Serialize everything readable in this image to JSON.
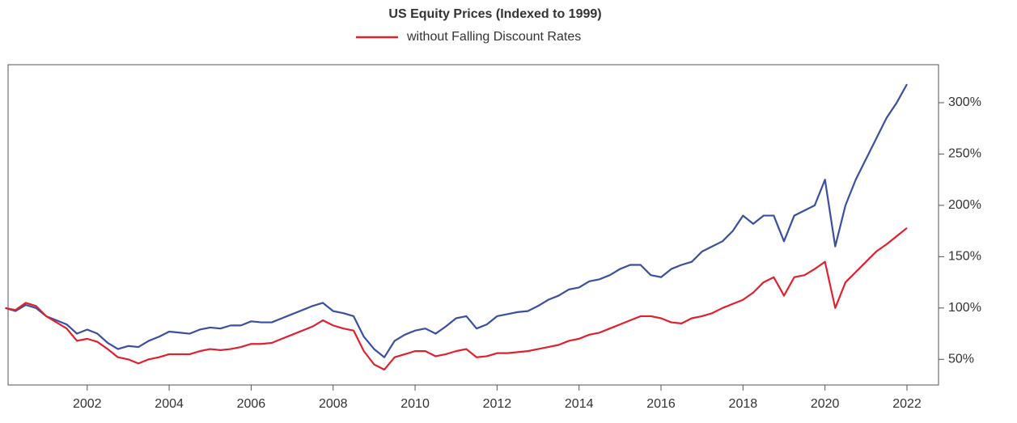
{
  "chart_data": {
    "type": "line",
    "title": "US Equity Prices (Indexed to 1999)",
    "x": [
      2000,
      2000.25,
      2000.5,
      2000.75,
      2001,
      2001.25,
      2001.5,
      2001.75,
      2002,
      2002.25,
      2002.5,
      2002.75,
      2003,
      2003.25,
      2003.5,
      2003.75,
      2004,
      2004.25,
      2004.5,
      2004.75,
      2005,
      2005.25,
      2005.5,
      2005.75,
      2006,
      2006.25,
      2006.5,
      2006.75,
      2007,
      2007.25,
      2007.5,
      2007.75,
      2008,
      2008.25,
      2008.5,
      2008.75,
      2009,
      2009.25,
      2009.5,
      2009.75,
      2010,
      2010.25,
      2010.5,
      2010.75,
      2011,
      2011.25,
      2011.5,
      2011.75,
      2012,
      2012.25,
      2012.5,
      2012.75,
      2013,
      2013.25,
      2013.5,
      2013.75,
      2014,
      2014.25,
      2014.5,
      2014.75,
      2015,
      2015.25,
      2015.5,
      2015.75,
      2016,
      2016.25,
      2016.5,
      2016.75,
      2017,
      2017.25,
      2017.5,
      2017.75,
      2018,
      2018.25,
      2018.5,
      2018.75,
      2019,
      2019.25,
      2019.5,
      2019.75,
      2020,
      2020.25,
      2020.5,
      2020.75,
      2021,
      2021.25,
      2021.5,
      2021.75,
      2022
    ],
    "series": [
      {
        "color": "#3a4fa0",
        "values": [
          100,
          97,
          103,
          100,
          92,
          88,
          84,
          75,
          79,
          75,
          66,
          60,
          63,
          62,
          68,
          72,
          77,
          76,
          75,
          79,
          81,
          80,
          83,
          83,
          87,
          86,
          86,
          90,
          94,
          98,
          102,
          105,
          97,
          95,
          92,
          72,
          60,
          52,
          68,
          74,
          78,
          80,
          75,
          82,
          90,
          92,
          80,
          84,
          92,
          94,
          96,
          97,
          102,
          108,
          112,
          118,
          120,
          126,
          128,
          132,
          138,
          142,
          142,
          132,
          130,
          138,
          142,
          145,
          155,
          160,
          165,
          175,
          190,
          182,
          190,
          190,
          165,
          190,
          195,
          200,
          225,
          160,
          200,
          225,
          245,
          265,
          285,
          300,
          318
        ]
      },
      {
        "name": "without Falling Discount Rates",
        "color": "#e0202e",
        "values": [
          100,
          98,
          105,
          102,
          92,
          86,
          80,
          68,
          70,
          67,
          60,
          52,
          50,
          46,
          50,
          52,
          55,
          55,
          55,
          58,
          60,
          59,
          60,
          62,
          65,
          65,
          66,
          70,
          74,
          78,
          82,
          88,
          83,
          80,
          78,
          58,
          45,
          40,
          52,
          55,
          58,
          58,
          53,
          55,
          58,
          60,
          52,
          53,
          56,
          56,
          57,
          58,
          60,
          62,
          64,
          68,
          70,
          74,
          76,
          80,
          84,
          88,
          92,
          92,
          90,
          86,
          85,
          90,
          92,
          95,
          100,
          104,
          108,
          115,
          125,
          130,
          112,
          130,
          132,
          138,
          145,
          100,
          125,
          135,
          145,
          155,
          162,
          170,
          178
        ]
      }
    ],
    "xlim": [
      2000.07,
      2022.77
    ],
    "xticks": [
      2002,
      2004,
      2006,
      2008,
      2010,
      2012,
      2014,
      2016,
      2018,
      2020,
      2022
    ],
    "ylim": [
      25,
      337
    ],
    "yticks": [
      {
        "value": 50,
        "label": "50%"
      },
      {
        "value": 100,
        "label": "100%"
      },
      {
        "value": 150,
        "label": "150%"
      },
      {
        "value": 200,
        "label": "200%"
      },
      {
        "value": 250,
        "label": "250%"
      },
      {
        "value": 300,
        "label": "300%"
      }
    ]
  }
}
